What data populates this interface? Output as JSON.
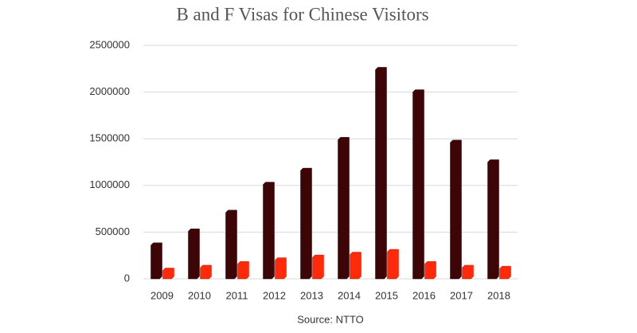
{
  "chart_data": {
    "type": "bar",
    "title": "B and F Visas for Chinese Visitors",
    "source": "Source: NTTO",
    "categories": [
      "2009",
      "2010",
      "2011",
      "2012",
      "2013",
      "2014",
      "2015",
      "2016",
      "2017",
      "2018"
    ],
    "series": [
      {
        "color": "#3d0505",
        "values": [
          360000,
          510000,
          710000,
          1010000,
          1160000,
          1490000,
          2240000,
          2000000,
          1460000,
          1250000
        ]
      },
      {
        "color": "#ff2a0a",
        "values": [
          90000,
          120000,
          160000,
          200000,
          230000,
          260000,
          290000,
          160000,
          120000,
          110000
        ]
      }
    ],
    "ylim": [
      0,
      2500000
    ],
    "yticks": [
      0,
      500000,
      1000000,
      1500000,
      2000000,
      2500000
    ],
    "grid": true
  }
}
